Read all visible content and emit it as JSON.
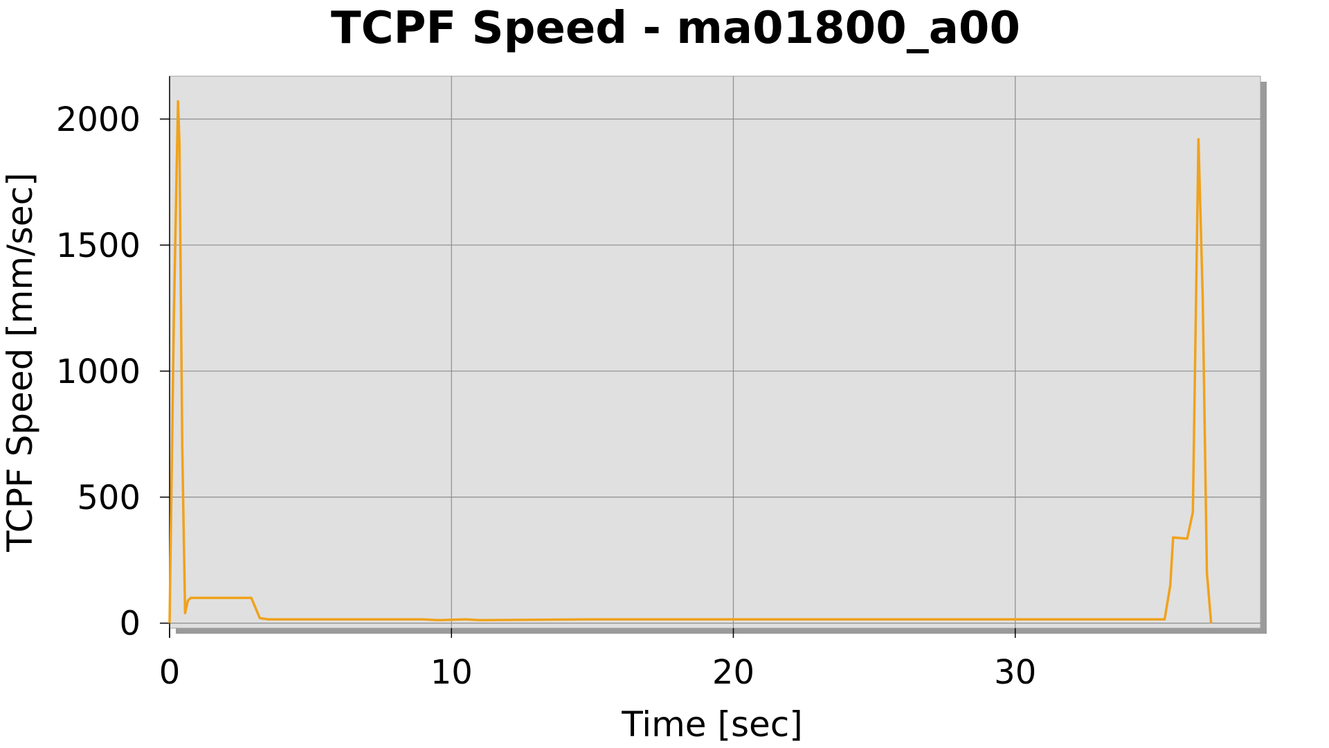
{
  "chart_data": {
    "type": "line",
    "title": "TCPF Speed - ma01800_a00",
    "xlabel": "Time [sec]",
    "ylabel": "TCPF Speed [mm/sec]",
    "xlim": [
      0,
      38.7
    ],
    "ylim": [
      -20,
      2170
    ],
    "xticks": [
      0,
      10,
      20,
      30
    ],
    "yticks": [
      0,
      500,
      1000,
      1500,
      2000
    ],
    "grid": true,
    "legend": "none",
    "colors": {
      "series": "#f0a21c",
      "plot_background": "#e0e0e0",
      "shadow": "#9a9a9a",
      "grid": "#8c8c8c"
    },
    "series": [
      {
        "x": [
          0.0,
          0.05,
          0.15,
          0.25,
          0.3,
          0.35,
          0.45,
          0.55,
          0.65,
          0.75,
          1.0,
          2.0,
          2.9,
          3.2,
          3.5,
          5.0,
          9.0,
          9.5,
          10.5,
          11.0,
          15.0,
          20.0,
          25.0,
          30.0,
          35.0,
          35.3,
          35.5,
          35.6,
          36.1,
          36.3,
          36.5,
          36.65,
          36.8,
          36.95
        ],
        "y": [
          0,
          400,
          1200,
          1800,
          2070,
          1900,
          700,
          40,
          90,
          100,
          100,
          100,
          100,
          20,
          15,
          15,
          15,
          12,
          15,
          12,
          15,
          15,
          15,
          15,
          15,
          15,
          150,
          340,
          335,
          440,
          1920,
          1300,
          200,
          0
        ]
      }
    ]
  }
}
